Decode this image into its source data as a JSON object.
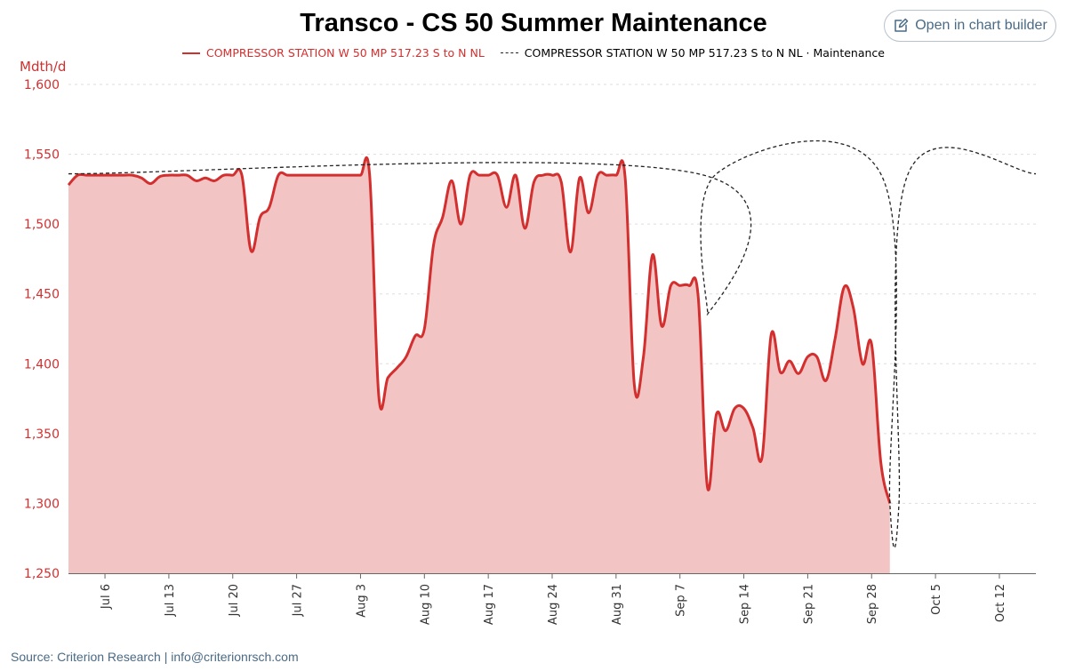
{
  "title": "Transco - CS 50 Summer Maintenance",
  "builder_button": {
    "label": "Open in chart builder",
    "icon": "edit-icon"
  },
  "source": "Source: Criterion Research | info@criterionrsch.com",
  "colors": {
    "actual": "#d32f2f",
    "actual_fill": "#f2c4c4",
    "maintenance": "#222222",
    "grid": "#dddddd"
  },
  "chart_data": {
    "type": "area",
    "ylabel": "Mdth/d",
    "ylim": [
      1250,
      1600
    ],
    "yticks": [
      1250,
      1300,
      1350,
      1400,
      1450,
      1500,
      1550,
      1600
    ],
    "ytick_labels": [
      "1,250",
      "1,300",
      "1,350",
      "1,400",
      "1,450",
      "1,500",
      "1,550",
      "1,600"
    ],
    "xlim": [
      "2025-07-02",
      "2025-10-16"
    ],
    "xticks": [
      "2025-07-06",
      "2025-07-13",
      "2025-07-20",
      "2025-07-27",
      "2025-08-03",
      "2025-08-10",
      "2025-08-17",
      "2025-08-24",
      "2025-08-31",
      "2025-09-07",
      "2025-09-14",
      "2025-09-21",
      "2025-09-28",
      "2025-10-05",
      "2025-10-12"
    ],
    "xtick_labels": [
      "Jul 6",
      "Jul 13",
      "Jul 20",
      "Jul 27",
      "Aug 3",
      "Aug 10",
      "Aug 17",
      "Aug 24",
      "Aug 31",
      "Sep 7",
      "Sep 14",
      "Sep 21",
      "Sep 28",
      "Oct 5",
      "Oct 12"
    ],
    "grid": true,
    "legend_position": "top-center",
    "series": [
      {
        "name": "COMPRESSOR STATION W 50 MP 517.23 S to N NL",
        "style": "solid-area",
        "points": [
          [
            "2025-07-02",
            1528
          ],
          [
            "2025-07-03",
            1535
          ],
          [
            "2025-07-04",
            1535
          ],
          [
            "2025-07-05",
            1535
          ],
          [
            "2025-07-06",
            1535
          ],
          [
            "2025-07-07",
            1535
          ],
          [
            "2025-07-08",
            1535
          ],
          [
            "2025-07-09",
            1535
          ],
          [
            "2025-07-10",
            1533
          ],
          [
            "2025-07-11",
            1529
          ],
          [
            "2025-07-12",
            1534
          ],
          [
            "2025-07-13",
            1535
          ],
          [
            "2025-07-14",
            1535
          ],
          [
            "2025-07-15",
            1535
          ],
          [
            "2025-07-16",
            1531
          ],
          [
            "2025-07-17",
            1533
          ],
          [
            "2025-07-18",
            1531
          ],
          [
            "2025-07-19",
            1535
          ],
          [
            "2025-07-20",
            1535
          ],
          [
            "2025-07-21",
            1535
          ],
          [
            "2025-07-22",
            1481
          ],
          [
            "2025-07-23",
            1505
          ],
          [
            "2025-07-24",
            1512
          ],
          [
            "2025-07-25",
            1535
          ],
          [
            "2025-07-26",
            1535
          ],
          [
            "2025-07-27",
            1535
          ],
          [
            "2025-07-28",
            1535
          ],
          [
            "2025-07-29",
            1535
          ],
          [
            "2025-07-30",
            1535
          ],
          [
            "2025-07-31",
            1535
          ],
          [
            "2025-08-01",
            1535
          ],
          [
            "2025-08-02",
            1535
          ],
          [
            "2025-08-03",
            1535
          ],
          [
            "2025-08-04",
            1535
          ],
          [
            "2025-08-05",
            1377
          ],
          [
            "2025-08-06",
            1390
          ],
          [
            "2025-08-07",
            1397
          ],
          [
            "2025-08-08",
            1405
          ],
          [
            "2025-08-09",
            1420
          ],
          [
            "2025-08-10",
            1425
          ],
          [
            "2025-08-11",
            1485
          ],
          [
            "2025-08-12",
            1505
          ],
          [
            "2025-08-13",
            1531
          ],
          [
            "2025-08-14",
            1500
          ],
          [
            "2025-08-15",
            1535
          ],
          [
            "2025-08-16",
            1535
          ],
          [
            "2025-08-17",
            1535
          ],
          [
            "2025-08-18",
            1535
          ],
          [
            "2025-08-19",
            1512
          ],
          [
            "2025-08-20",
            1535
          ],
          [
            "2025-08-21",
            1497
          ],
          [
            "2025-08-22",
            1530
          ],
          [
            "2025-08-23",
            1535
          ],
          [
            "2025-08-24",
            1535
          ],
          [
            "2025-08-25",
            1530
          ],
          [
            "2025-08-26",
            1480
          ],
          [
            "2025-08-27",
            1533
          ],
          [
            "2025-08-28",
            1508
          ],
          [
            "2025-08-29",
            1535
          ],
          [
            "2025-08-30",
            1535
          ],
          [
            "2025-08-31",
            1535
          ],
          [
            "2025-09-01",
            1533
          ],
          [
            "2025-09-02",
            1385
          ],
          [
            "2025-09-03",
            1405
          ],
          [
            "2025-09-04",
            1478
          ],
          [
            "2025-09-05",
            1427
          ],
          [
            "2025-09-06",
            1456
          ],
          [
            "2025-09-07",
            1456
          ],
          [
            "2025-09-08",
            1456
          ],
          [
            "2025-09-09",
            1448
          ],
          [
            "2025-09-10",
            1312
          ],
          [
            "2025-09-11",
            1364
          ],
          [
            "2025-09-12",
            1352
          ],
          [
            "2025-09-13",
            1368
          ],
          [
            "2025-09-14",
            1368
          ],
          [
            "2025-09-15",
            1354
          ],
          [
            "2025-09-16",
            1333
          ],
          [
            "2025-09-17",
            1421
          ],
          [
            "2025-09-18",
            1394
          ],
          [
            "2025-09-19",
            1402
          ],
          [
            "2025-09-20",
            1393
          ],
          [
            "2025-09-21",
            1405
          ],
          [
            "2025-09-22",
            1405
          ],
          [
            "2025-09-23",
            1388
          ],
          [
            "2025-09-24",
            1418
          ],
          [
            "2025-09-25",
            1455
          ],
          [
            "2025-09-26",
            1440
          ],
          [
            "2025-09-27",
            1400
          ],
          [
            "2025-09-28",
            1414
          ],
          [
            "2025-09-29",
            1330
          ],
          [
            "2025-09-30",
            1300
          ]
        ]
      },
      {
        "name": "COMPRESSOR STATION W 50 MP 517.23 S to N NL · Maintenance",
        "style": "dashed-line",
        "points": [
          [
            "2025-07-02",
            1536
          ],
          [
            "2025-09-09",
            1536
          ],
          [
            "2025-09-10",
            1435
          ],
          [
            "2025-09-11",
            1536
          ],
          [
            "2025-09-29",
            1536
          ],
          [
            "2025-09-30",
            1300
          ],
          [
            "2025-10-01",
            1300
          ],
          [
            "2025-10-02",
            1536
          ],
          [
            "2025-10-16",
            1536
          ]
        ]
      }
    ]
  }
}
